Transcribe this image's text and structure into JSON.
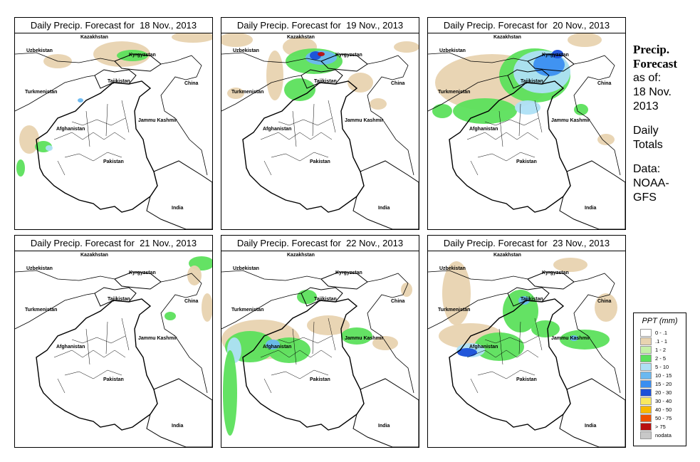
{
  "panels": [
    {
      "title": "Daily Precip. Forecast for  18 Nov., 2013"
    },
    {
      "title": "Daily Precip. Forecast for  19 Nov., 2013"
    },
    {
      "title": "Daily Precip. Forecast for  20 Nov., 2013"
    },
    {
      "title": "Daily Precip. Forecast for  21 Nov., 2013"
    },
    {
      "title": "Daily Precip. Forecast for  22 Nov., 2013"
    },
    {
      "title": "Daily Precip. Forecast for  23 Nov., 2013"
    }
  ],
  "map_labels": {
    "kazakhstan": "Kazakhstan",
    "uzbekistan": "Uzbekistan",
    "kyrgyzstan": "Kyrgyzstan",
    "tajikistan": "Tajikistan",
    "turkmenistan": "Turkmenistan",
    "china": "China",
    "afghanistan": "Afghanistan",
    "jammu_kashmir": "Jammu Kashmir",
    "pakistan": "Pakistan",
    "india": "India"
  },
  "sidebar": {
    "heading_line1": "Precip.",
    "heading_line2": "Forecast",
    "as_of_line1": "as of:",
    "as_of_line2": "18 Nov.",
    "as_of_line3": "2013",
    "totals_line1": "Daily",
    "totals_line2": "Totals",
    "data_line1": "Data:",
    "data_line2": "NOAA-",
    "data_line3": "GFS"
  },
  "legend": {
    "title": "PPT (mm)",
    "items": [
      {
        "label": "0 - .1",
        "color": "#ffffff"
      },
      {
        "label": ".1 - 1",
        "color": "#e8d3b0"
      },
      {
        "label": "1 - 2",
        "color": "#c5f0a8"
      },
      {
        "label": "2 - 5",
        "color": "#5ce05c"
      },
      {
        "label": "5 - 10",
        "color": "#aee0f5"
      },
      {
        "label": "10 - 15",
        "color": "#6ab8f0"
      },
      {
        "label": "15 - 20",
        "color": "#3a8ef0"
      },
      {
        "label": "20 - 30",
        "color": "#1a4fd8"
      },
      {
        "label": "30 - 40",
        "color": "#f8e860"
      },
      {
        "label": "40 - 50",
        "color": "#f8b800"
      },
      {
        "label": "50 - 75",
        "color": "#f05000"
      },
      {
        "label": "> 75",
        "color": "#b81010"
      },
      {
        "label": "nodata",
        "color": "#c8c8c8"
      }
    ]
  }
}
